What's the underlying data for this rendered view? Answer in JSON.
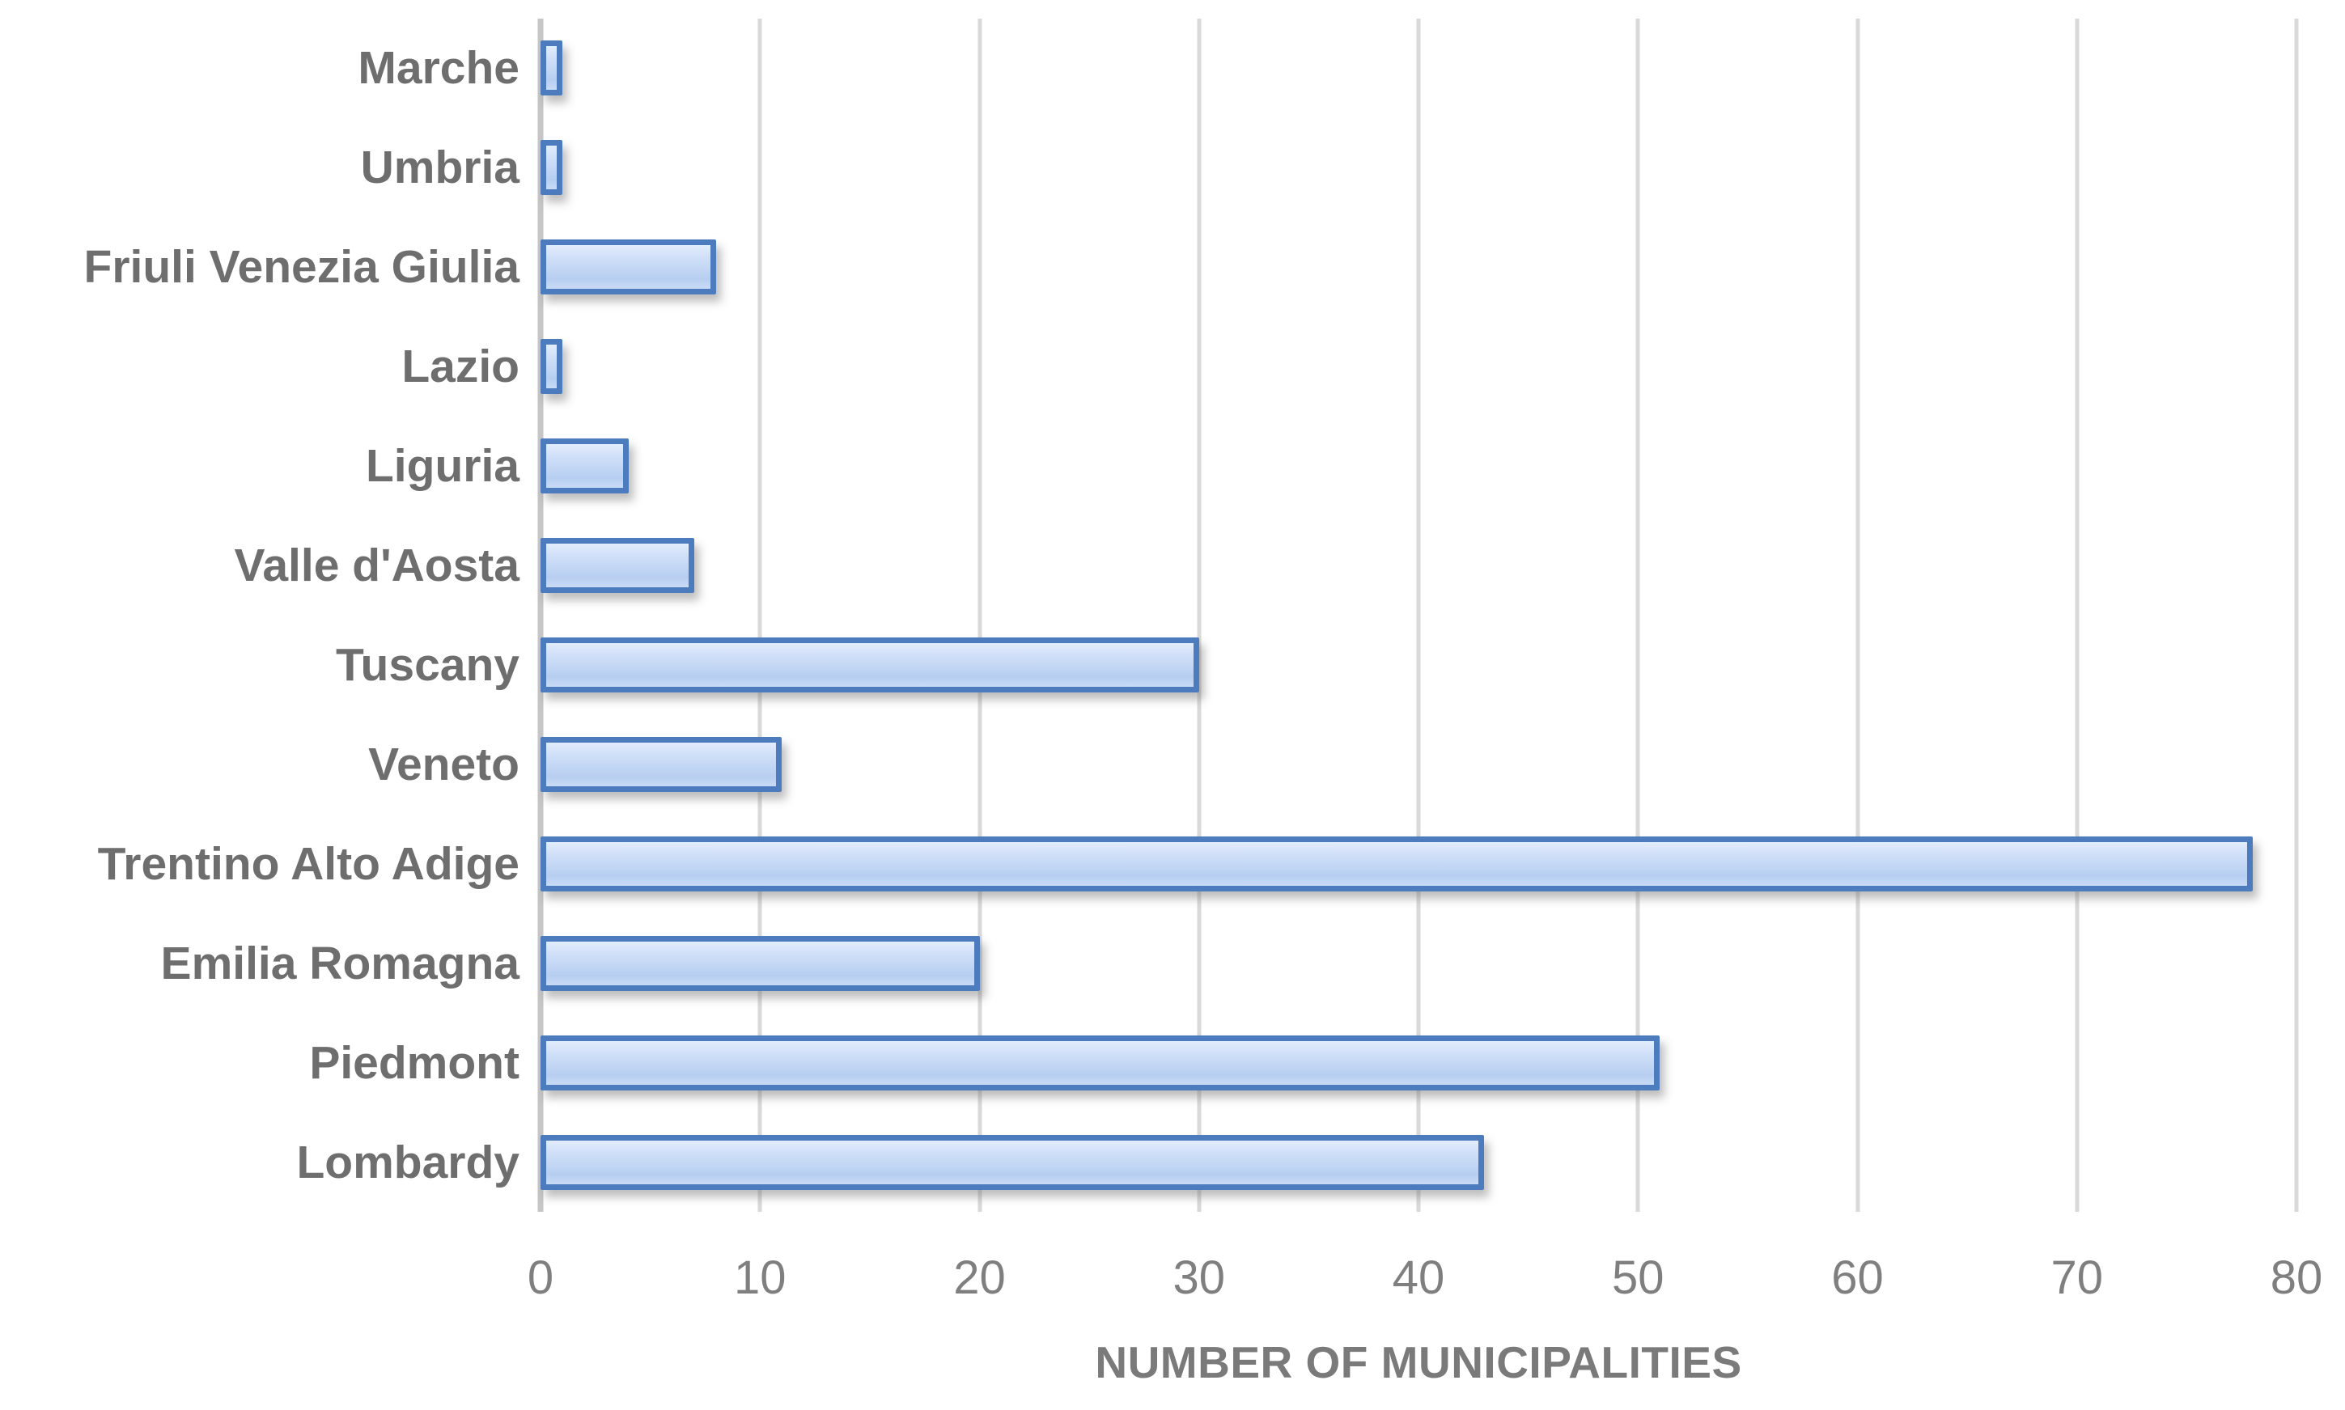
{
  "chart_data": {
    "type": "bar",
    "orientation": "horizontal",
    "categories": [
      "Marche",
      "Umbria",
      "Friuli Venezia Giulia",
      "Lazio",
      "Liguria",
      "Valle d'Aosta",
      "Tuscany",
      "Veneto",
      "Trentino Alto Adige",
      "Emilia Romagna",
      "Piedmont",
      "Lombardy"
    ],
    "values": [
      1,
      1,
      8,
      1,
      4,
      7,
      30,
      11,
      78,
      20,
      51,
      43
    ],
    "title": "",
    "xlabel": "NUMBER OF MUNICIPALITIES",
    "ylabel": "",
    "xlim": [
      0,
      80
    ],
    "xticks": [
      0,
      10,
      20,
      30,
      40,
      50,
      60,
      70,
      80
    ],
    "grid": "vertical-gridlines-on",
    "legend": "none",
    "colors": {
      "bar_border": "#4d7cbe",
      "bar_fill_light": "#e2ecfc",
      "bar_fill_dark": "#b7cef1",
      "gridline": "#d9d9d9",
      "axis_line": "#c6c6c6",
      "category_label_text": "#6e6e6e",
      "tick_label_text": "#7f7f7f",
      "axis_title_text": "#7a7a7a",
      "background": "#ffffff"
    }
  }
}
